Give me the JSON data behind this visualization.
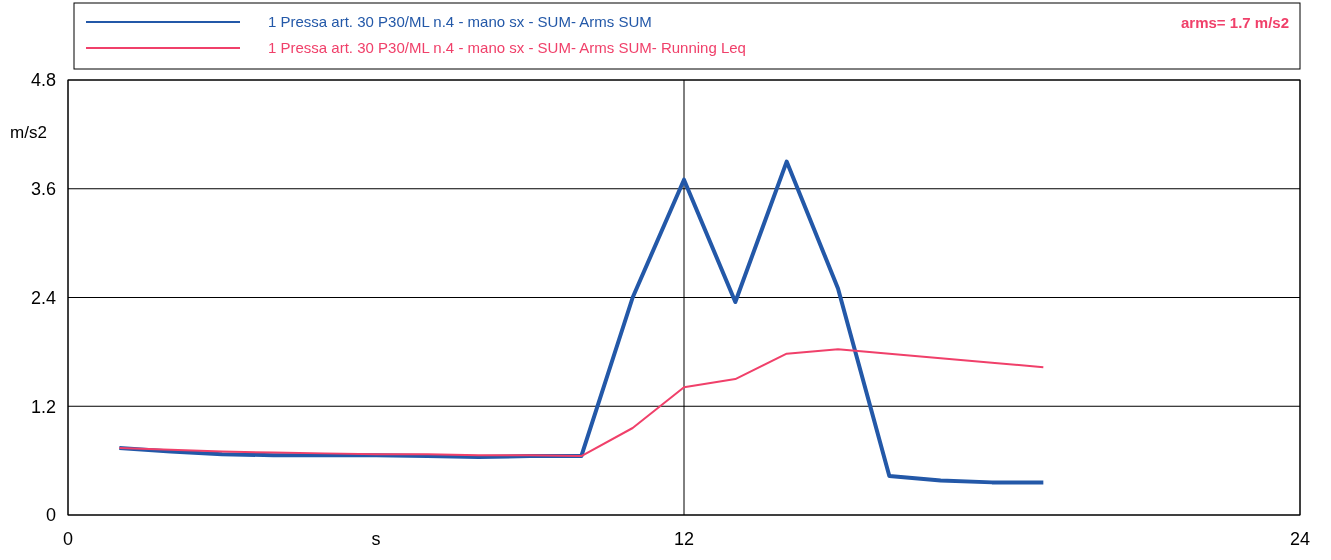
{
  "chart_data": {
    "type": "line",
    "xlabel": "s",
    "ylabel": "m/s2",
    "annotations": [
      "arms= 1.7 m/s2"
    ],
    "x": [
      1,
      2,
      3,
      4,
      5,
      6,
      7,
      8,
      9,
      10,
      11,
      12,
      13,
      14,
      15,
      16,
      17,
      18,
      19
    ],
    "series": [
      {
        "name": "1 Pressa art. 30 P30/ML n.4 - mano sx - SUM- Arms SUM",
        "color": "#2358a8",
        "values": [
          0.74,
          0.7,
          0.67,
          0.66,
          0.66,
          0.66,
          0.65,
          0.64,
          0.65,
          0.65,
          2.4,
          3.7,
          2.35,
          3.9,
          2.5,
          0.43,
          0.38,
          0.36,
          0.36
        ]
      },
      {
        "name": "1 Pressa art. 30 P30/ML n.4 - mano sx - SUM- Arms SUM- Running Leq",
        "color": "#f0406a",
        "values": [
          0.74,
          0.72,
          0.7,
          0.69,
          0.68,
          0.67,
          0.67,
          0.66,
          0.66,
          0.65,
          0.96,
          1.41,
          1.5,
          1.78,
          1.83,
          1.78,
          1.73,
          1.68,
          1.63
        ]
      }
    ],
    "xlim": [
      0,
      24
    ],
    "ylim": [
      0,
      4.8
    ],
    "xticks": [
      0,
      12,
      24
    ],
    "yticks": [
      0,
      1.2,
      2.4,
      3.6,
      4.8
    ],
    "grid": true,
    "legend": "top",
    "marker": "none",
    "line_style": "solid"
  }
}
